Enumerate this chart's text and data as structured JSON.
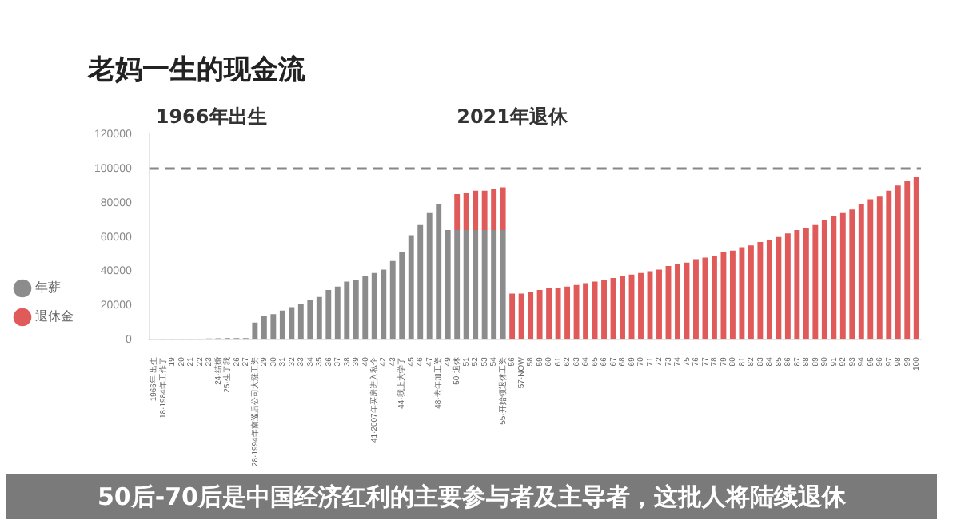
{
  "chart_data": {
    "type": "bar",
    "stacked": true,
    "title": "老妈一生的现金流",
    "categories": [
      "1966年 出生",
      "18·1984年工作了",
      "19",
      "20",
      "21",
      "22",
      "23",
      "24·结婚",
      "25·生了我",
      "26",
      "27",
      "28·1994年南巡后公司大涨工资",
      "29",
      "30",
      "31",
      "32",
      "33",
      "34",
      "35",
      "36",
      "37",
      "38",
      "39",
      "40",
      "41·2007年买房进入私企",
      "42",
      "43",
      "44·我上大学了",
      "45",
      "46",
      "47",
      "48·去年加工资",
      "49",
      "50·退休",
      "51",
      "52",
      "53",
      "54",
      "55·开始领退休工资",
      "56",
      "57·NOW",
      "58",
      "59",
      "60",
      "61",
      "62",
      "63",
      "64",
      "65",
      "66",
      "67",
      "68",
      "69",
      "70",
      "71",
      "72",
      "73",
      "74",
      "75",
      "76",
      "77",
      "78",
      "79",
      "80",
      "81",
      "82",
      "83",
      "84",
      "85",
      "86",
      "87",
      "88",
      "89",
      "90",
      "91",
      "92",
      "93",
      "94",
      "95",
      "96",
      "97",
      "98",
      "99",
      "100"
    ],
    "series": [
      {
        "name": "年薪",
        "color": "#8c8c8c",
        "values": [
          null,
          400,
          500,
          500,
          600,
          600,
          700,
          800,
          900,
          900,
          1000,
          10000,
          14000,
          15000,
          17000,
          19000,
          21000,
          23000,
          25000,
          29000,
          31000,
          34000,
          35000,
          37000,
          39000,
          41000,
          46000,
          51000,
          61000,
          67000,
          74000,
          79000,
          64000,
          64000,
          64000,
          64000,
          64000,
          64000,
          64000,
          null,
          null,
          null,
          null,
          null,
          null,
          null,
          null,
          null,
          null,
          null,
          null,
          null,
          null,
          null,
          null,
          null,
          null,
          null,
          null,
          null,
          null,
          null,
          null,
          null,
          null,
          null,
          null,
          null,
          null,
          null,
          null,
          null,
          null,
          null,
          null,
          null,
          null,
          null,
          null,
          null,
          null,
          null,
          null,
          null
        ]
      },
      {
        "name": "退休金",
        "color": "#e05a5a",
        "values": [
          null,
          null,
          null,
          null,
          null,
          null,
          null,
          null,
          null,
          null,
          null,
          null,
          null,
          null,
          null,
          null,
          null,
          null,
          null,
          null,
          null,
          null,
          null,
          null,
          null,
          null,
          null,
          null,
          null,
          null,
          null,
          null,
          null,
          21000,
          22000,
          23000,
          23000,
          24000,
          25000,
          27000,
          27000,
          28000,
          29000,
          30000,
          30000,
          31000,
          32000,
          33000,
          34000,
          35000,
          36000,
          37000,
          38000,
          39000,
          40000,
          41000,
          43000,
          44000,
          45000,
          47000,
          48000,
          49000,
          51000,
          52000,
          54000,
          55000,
          57000,
          58000,
          60000,
          62000,
          64000,
          65000,
          67000,
          70000,
          72000,
          74000,
          76000,
          79000,
          82000,
          84000,
          87000,
          90000,
          93000,
          95000
        ]
      }
    ],
    "ylim": [
      0,
      120000
    ],
    "yticks": [
      0,
      20000,
      40000,
      60000,
      80000,
      100000,
      120000
    ],
    "grid": false,
    "legend": "left",
    "ref_lines": [
      {
        "axis": "y",
        "value": 100000,
        "color": "#888888",
        "line_style": "dashed"
      }
    ],
    "annotations": [
      "1966年出生",
      "2021年退休",
      "50后-70后是中国经济红利的主要参与者及主导者，这批人将陆续退休"
    ]
  }
}
